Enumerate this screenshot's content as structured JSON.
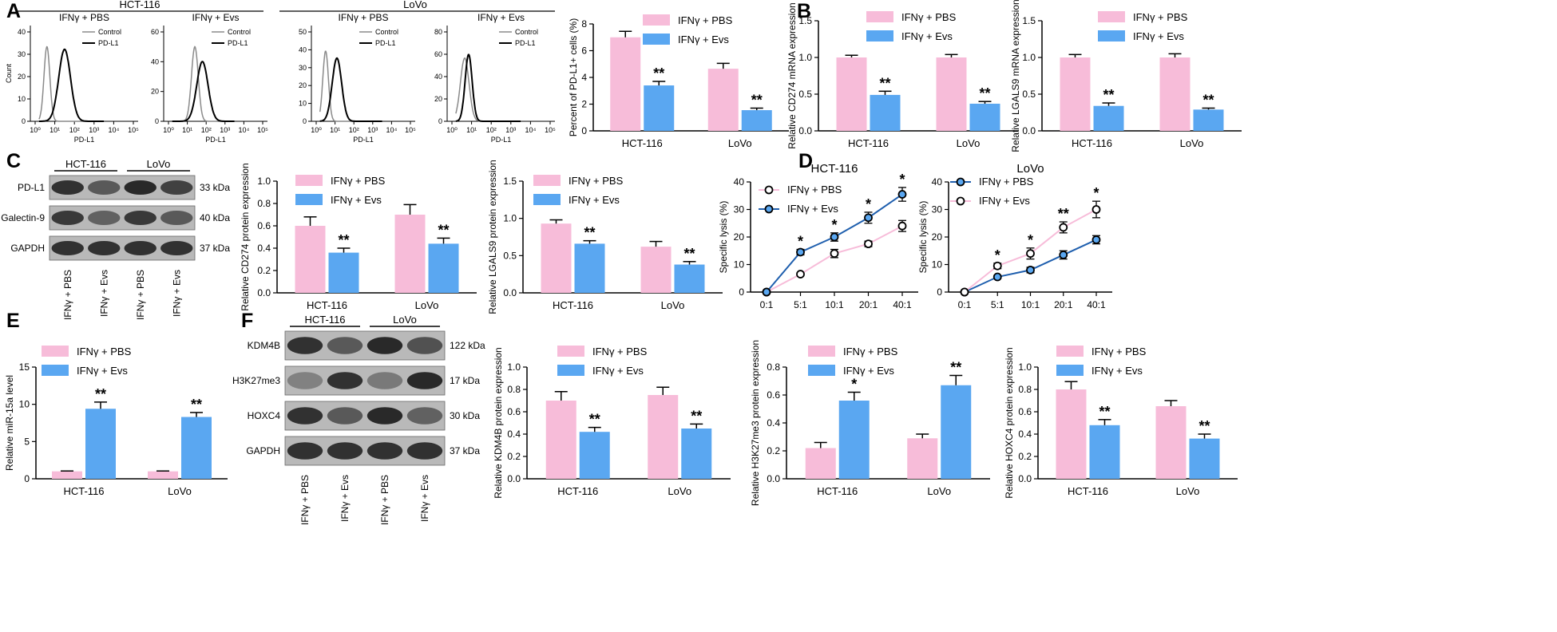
{
  "colors": {
    "pbs": "#F7BCD9",
    "evs": "#5AA7F1",
    "blue_line": "#1F5FAE",
    "control_line": "#8a8a8a",
    "black": "#000000"
  },
  "panel_labels": [
    "A",
    "B",
    "C",
    "D",
    "E",
    "F"
  ],
  "flow": {
    "cell_lines": [
      "HCT-116",
      "LoVo"
    ],
    "histograms": [
      {
        "title": "IFNγ + PBS",
        "legend": [
          "Control",
          "PD-L1"
        ],
        "xlabel": "PD-L1",
        "ylabel": "Count",
        "yticks": [
          "0",
          "10",
          "20",
          "30",
          "40"
        ],
        "xticks": [
          "10⁰",
          "10¹",
          "10²",
          "10³",
          "10⁴",
          "10⁵"
        ]
      },
      {
        "title": "IFNγ + Evs",
        "legend": [
          "Control",
          "PD-L1"
        ],
        "xlabel": "PD-L1",
        "ylabel": "",
        "yticks": [
          "0",
          "20",
          "40",
          "60"
        ],
        "xticks": [
          "10⁰",
          "10¹",
          "10²",
          "10³",
          "10⁴",
          "10⁵"
        ]
      },
      {
        "title": "IFNγ + PBS",
        "legend": [
          "Control",
          "PD-L1"
        ],
        "xlabel": "PD-L1",
        "ylabel": "",
        "yticks": [
          "0",
          "10",
          "20",
          "30",
          "40",
          "50"
        ],
        "xticks": [
          "10⁰",
          "10¹",
          "10²",
          "10³",
          "10⁴",
          "10⁵"
        ]
      },
      {
        "title": "IFNγ + Evs",
        "legend": [
          "Control",
          "PD-L1"
        ],
        "xlabel": "PD-L1",
        "ylabel": "",
        "yticks": [
          "0",
          "20",
          "40",
          "60",
          "80"
        ],
        "xticks": [
          "10⁰",
          "10¹",
          "10²",
          "10³",
          "10⁴",
          "10⁵"
        ]
      }
    ]
  },
  "blots_c": {
    "groups": [
      "HCT-116",
      "LoVo"
    ],
    "rows": [
      {
        "protein": "PD-L1",
        "size": "33 kDa"
      },
      {
        "protein": "Galectin-9",
        "size": "40 kDa"
      },
      {
        "protein": "GAPDH",
        "size": "37 kDa"
      }
    ],
    "lanes": [
      "IFNγ + PBS",
      "IFNγ + Evs",
      "IFNγ + PBS",
      "IFNγ + Evs"
    ]
  },
  "blots_f": {
    "groups": [
      "HCT-116",
      "LoVo"
    ],
    "rows": [
      {
        "protein": "KDM4B",
        "size": "122 kDa"
      },
      {
        "protein": "H3K27me3",
        "size": "17 kDa"
      },
      {
        "protein": "HOXC4",
        "size": "30 kDa"
      },
      {
        "protein": "GAPDH",
        "size": "37 kDa"
      }
    ],
    "lanes": [
      "IFNγ + PBS",
      "IFNγ + Evs",
      "IFNγ + PBS",
      "IFNγ + Evs"
    ]
  },
  "chart_data": [
    {
      "id": "A_bar",
      "type": "bar",
      "categories": [
        "HCT-116",
        "LoVo"
      ],
      "series": [
        {
          "name": "IFNγ + PBS",
          "values": [
            7.0,
            4.65
          ],
          "errors": [
            0.45,
            0.4
          ]
        },
        {
          "name": "IFNγ + Evs",
          "values": [
            3.4,
            1.55
          ],
          "errors": [
            0.3,
            0.15
          ],
          "sig": [
            "**",
            "**"
          ]
        }
      ],
      "ylabel": "Percent of PD-L1+ cells (%)",
      "ylim": [
        0,
        8
      ],
      "yticks": [
        0,
        2,
        4,
        6,
        8
      ],
      "legend": "top-right"
    },
    {
      "id": "B1",
      "type": "bar",
      "categories": [
        "HCT-116",
        "LoVo"
      ],
      "series": [
        {
          "name": "IFNγ + PBS",
          "values": [
            1.0,
            1.0
          ],
          "errors": [
            0.03,
            0.04
          ]
        },
        {
          "name": "IFNγ + Evs",
          "values": [
            0.49,
            0.37
          ],
          "errors": [
            0.05,
            0.03
          ],
          "sig": [
            "**",
            "**"
          ]
        }
      ],
      "ylabel": "Relative CD274 mRNA expression",
      "ylim": [
        0,
        1.5
      ],
      "yticks": [
        0.0,
        0.5,
        1.0,
        1.5
      ],
      "legend": "top-right"
    },
    {
      "id": "B2",
      "type": "bar",
      "categories": [
        "HCT-116",
        "LoVo"
      ],
      "series": [
        {
          "name": "IFNγ + PBS",
          "values": [
            1.0,
            1.0
          ],
          "errors": [
            0.04,
            0.05
          ]
        },
        {
          "name": "IFNγ + Evs",
          "values": [
            0.34,
            0.29
          ],
          "errors": [
            0.04,
            0.02
          ],
          "sig": [
            "**",
            "**"
          ]
        }
      ],
      "ylabel": "Relative LGALS9 mRNA expression",
      "ylim": [
        0,
        1.5
      ],
      "yticks": [
        0.0,
        0.5,
        1.0,
        1.5
      ],
      "legend": "top-right"
    },
    {
      "id": "C1",
      "type": "bar",
      "categories": [
        "HCT-116",
        "LoVo"
      ],
      "series": [
        {
          "name": "IFNγ + PBS",
          "values": [
            0.6,
            0.7
          ],
          "errors": [
            0.08,
            0.09
          ]
        },
        {
          "name": "IFNγ + Evs",
          "values": [
            0.36,
            0.44
          ],
          "errors": [
            0.04,
            0.05
          ],
          "sig": [
            "**",
            "**"
          ]
        }
      ],
      "ylabel": "Relative CD274 protein expression",
      "ylim": [
        0,
        1.0
      ],
      "yticks": [
        0.0,
        0.2,
        0.4,
        0.6,
        0.8,
        1.0
      ],
      "legend": "top-right"
    },
    {
      "id": "C2",
      "type": "bar",
      "categories": [
        "HCT-116",
        "LoVo"
      ],
      "series": [
        {
          "name": "IFNγ + PBS",
          "values": [
            0.93,
            0.62
          ],
          "errors": [
            0.05,
            0.07
          ]
        },
        {
          "name": "IFNγ + Evs",
          "values": [
            0.66,
            0.38
          ],
          "errors": [
            0.04,
            0.04
          ],
          "sig": [
            "**",
            "**"
          ]
        }
      ],
      "ylabel": "Relative LGALS9 protein expression",
      "ylim": [
        0,
        1.5
      ],
      "yticks": [
        0.0,
        0.5,
        1.0,
        1.5
      ],
      "legend": "top-right"
    },
    {
      "id": "D1",
      "type": "line",
      "title": "HCT-116",
      "categories": [
        "0:1",
        "5:1",
        "10:1",
        "20:1",
        "40:1"
      ],
      "series": [
        {
          "name": "IFNγ + PBS",
          "values": [
            0,
            6.5,
            14,
            17.5,
            24
          ],
          "errors": [
            0,
            0.5,
            1.5,
            1,
            2
          ],
          "style": "open"
        },
        {
          "name": "IFNγ + Evs",
          "values": [
            0,
            14.5,
            20,
            27,
            35.5
          ],
          "errors": [
            0,
            1,
            1.5,
            2,
            2.5
          ],
          "style": "filled",
          "sig": [
            "",
            "*",
            "*",
            "*",
            "*"
          ]
        }
      ],
      "ylabel": "Specific lysis (%)",
      "ylim": [
        0,
        40
      ],
      "yticks": [
        0,
        10,
        20,
        30,
        40
      ],
      "legend": "top-left"
    },
    {
      "id": "D2",
      "type": "line",
      "title": "LoVo",
      "categories": [
        "0:1",
        "5:1",
        "10:1",
        "20:1",
        "40:1"
      ],
      "series": [
        {
          "name": "IFNγ + PBS",
          "values": [
            0,
            5.5,
            8,
            13.5,
            19
          ],
          "errors": [
            0,
            0.5,
            1,
            1.5,
            1.5
          ],
          "style": "filled"
        },
        {
          "name": "IFNγ + Evs",
          "values": [
            0,
            9.5,
            14,
            23.5,
            30
          ],
          "errors": [
            0,
            1,
            2,
            2,
            3
          ],
          "style": "open",
          "sig": [
            "",
            "*",
            "*",
            "**",
            "*"
          ]
        }
      ],
      "ylabel": "Specific lysis (%)",
      "ylim": [
        0,
        40
      ],
      "yticks": [
        0,
        10,
        20,
        30,
        40
      ],
      "legend": "top-left"
    },
    {
      "id": "E",
      "type": "bar",
      "categories": [
        "HCT-116",
        "LoVo"
      ],
      "series": [
        {
          "name": "IFNγ + PBS",
          "values": [
            1.0,
            1.0
          ],
          "errors": [
            0.05,
            0.05
          ]
        },
        {
          "name": "IFNγ + Evs",
          "values": [
            9.4,
            8.3
          ],
          "errors": [
            0.9,
            0.6
          ],
          "sig": [
            "**",
            "**"
          ]
        }
      ],
      "ylabel": "Relative miR-15a level",
      "ylim": [
        0,
        15
      ],
      "yticks": [
        0,
        5,
        10,
        15
      ],
      "legend": "top-left"
    },
    {
      "id": "F1",
      "type": "bar",
      "categories": [
        "HCT-116",
        "LoVo"
      ],
      "series": [
        {
          "name": "IFNγ + PBS",
          "values": [
            0.7,
            0.75
          ],
          "errors": [
            0.08,
            0.07
          ]
        },
        {
          "name": "IFNγ + Evs",
          "values": [
            0.42,
            0.45
          ],
          "errors": [
            0.04,
            0.04
          ],
          "sig": [
            "**",
            "**"
          ]
        }
      ],
      "ylabel": "Relative KDM4B protein expression",
      "ylim": [
        0,
        1.0
      ],
      "yticks": [
        0.0,
        0.2,
        0.4,
        0.6,
        0.8,
        1.0
      ],
      "legend": "top-right"
    },
    {
      "id": "F2",
      "type": "bar",
      "categories": [
        "HCT-116",
        "LoVo"
      ],
      "series": [
        {
          "name": "IFNγ + PBS",
          "values": [
            0.22,
            0.29
          ],
          "errors": [
            0.04,
            0.03
          ]
        },
        {
          "name": "IFNγ + Evs",
          "values": [
            0.56,
            0.67
          ],
          "errors": [
            0.06,
            0.07
          ],
          "sig": [
            "*",
            "**"
          ]
        }
      ],
      "ylabel": "Relative H3K27me3 protein expression",
      "ylim": [
        0,
        0.8
      ],
      "yticks": [
        0.0,
        0.2,
        0.4,
        0.6,
        0.8
      ],
      "legend": "top-right"
    },
    {
      "id": "F3",
      "type": "bar",
      "categories": [
        "HCT-116",
        "LoVo"
      ],
      "series": [
        {
          "name": "IFNγ + PBS",
          "values": [
            0.8,
            0.65
          ],
          "errors": [
            0.07,
            0.05
          ]
        },
        {
          "name": "IFNγ + Evs",
          "values": [
            0.48,
            0.36
          ],
          "errors": [
            0.05,
            0.04
          ],
          "sig": [
            "**",
            "**"
          ]
        }
      ],
      "ylabel": "Relative HOXC4 protein expression",
      "ylim": [
        0,
        1.0
      ],
      "yticks": [
        0.0,
        0.2,
        0.4,
        0.6,
        0.8,
        1.0
      ],
      "legend": "top-right"
    }
  ]
}
